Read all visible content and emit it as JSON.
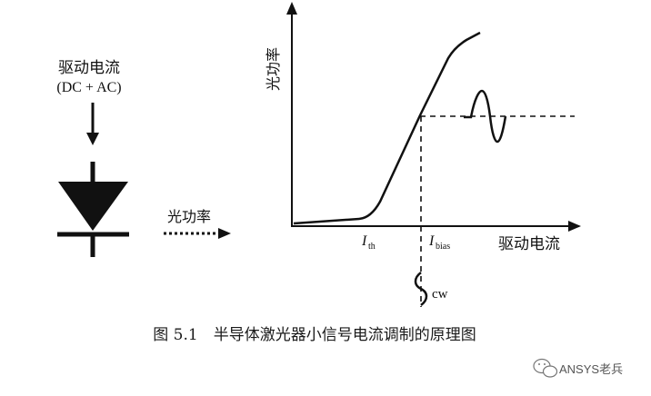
{
  "left": {
    "drive_label": "驱动电流",
    "drive_sub": "(DC + AC)",
    "output_label": "光功率"
  },
  "graph": {
    "y_axis_label": "光功率",
    "x_axis_label": "驱动电流",
    "ith_main": "I",
    "ith_sub": "th",
    "ibias_main": "I",
    "ibias_sub": "bias",
    "cw_label": "cw"
  },
  "caption": "图 5.1　半导体激光器小信号电流调制的原理图",
  "watermark": "ANSYS老兵"
}
